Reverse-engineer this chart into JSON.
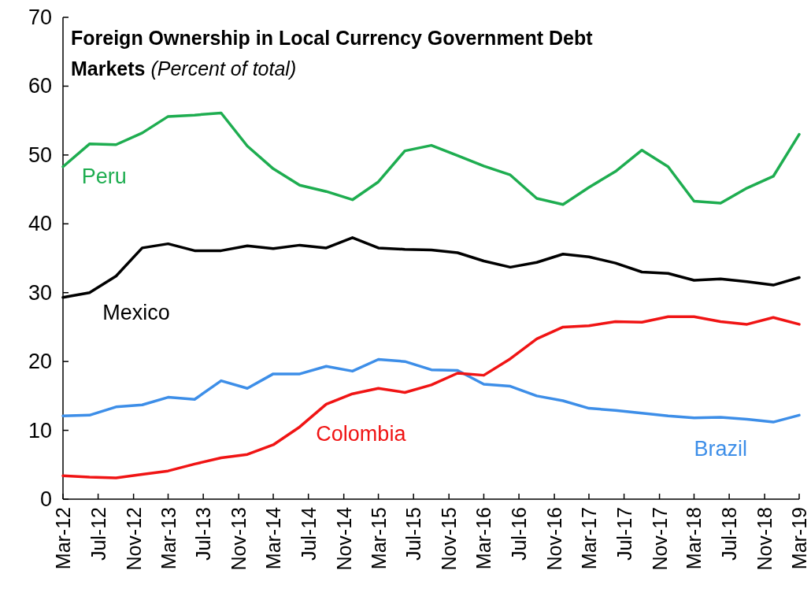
{
  "chart_data": {
    "type": "line",
    "title": "Foreign Ownership in Local Currency Government Debt Markets",
    "subtitle": "(Percent of total)",
    "x": [
      "2012-03",
      "2012-06",
      "2012-09",
      "2012-12",
      "2013-03",
      "2013-06",
      "2013-09",
      "2013-12",
      "2014-03",
      "2014-06",
      "2014-09",
      "2014-12",
      "2015-03",
      "2015-06",
      "2015-09",
      "2015-12",
      "2016-03",
      "2016-06",
      "2016-09",
      "2016-12",
      "2017-03",
      "2017-06",
      "2017-09",
      "2017-12",
      "2018-03",
      "2018-06",
      "2018-09",
      "2018-12",
      "2019-03"
    ],
    "series": [
      {
        "name": "Peru",
        "color": "#1ead50",
        "values": [
          48.3,
          51.6,
          51.5,
          53.2,
          55.6,
          55.8,
          56.1,
          51.3,
          48.0,
          45.6,
          44.7,
          43.5,
          46.1,
          50.6,
          51.4,
          49.9,
          48.4,
          47.1,
          43.7,
          42.8,
          45.3,
          47.6,
          50.7,
          48.3,
          43.3,
          43.0,
          45.2,
          46.9,
          53.0
        ]
      },
      {
        "name": "Mexico",
        "color": "#000000",
        "values": [
          29.3,
          30.0,
          32.4,
          36.5,
          37.1,
          36.1,
          36.1,
          36.8,
          36.4,
          36.9,
          36.5,
          38.0,
          36.5,
          36.3,
          36.2,
          35.8,
          34.6,
          33.7,
          34.4,
          35.6,
          35.2,
          34.3,
          33.0,
          32.8,
          31.8,
          32.0,
          31.6,
          31.1,
          32.2
        ]
      },
      {
        "name": "Brazil",
        "color": "#3d8ee8",
        "values": [
          12.1,
          12.2,
          13.4,
          13.7,
          14.8,
          14.5,
          17.2,
          16.1,
          18.2,
          18.2,
          19.3,
          18.6,
          20.3,
          20.0,
          18.8,
          18.7,
          16.7,
          16.4,
          15.0,
          14.3,
          13.2,
          12.9,
          12.5,
          12.1,
          11.8,
          11.9,
          11.6,
          11.2,
          12.2
        ]
      },
      {
        "name": "Colombia",
        "color": "#f01414",
        "values": [
          3.4,
          3.2,
          3.1,
          3.6,
          4.1,
          5.1,
          6.0,
          6.5,
          7.9,
          10.5,
          13.8,
          15.3,
          16.1,
          15.5,
          16.6,
          18.3,
          18.0,
          20.4,
          23.3,
          25.0,
          25.2,
          25.8,
          25.7,
          26.5,
          26.5,
          25.8,
          25.4,
          26.4,
          25.4
        ]
      }
    ],
    "xlim": [
      "2012-03",
      "2019-03"
    ],
    "xticks": [
      {
        "value": "2012-03",
        "label": "Mar-12"
      },
      {
        "value": "2012-07",
        "label": "Jul-12"
      },
      {
        "value": "2012-11",
        "label": "Nov-12"
      },
      {
        "value": "2013-03",
        "label": "Mar-13"
      },
      {
        "value": "2013-07",
        "label": "Jul-13"
      },
      {
        "value": "2013-11",
        "label": "Nov-13"
      },
      {
        "value": "2014-03",
        "label": "Mar-14"
      },
      {
        "value": "2014-07",
        "label": "Jul-14"
      },
      {
        "value": "2014-11",
        "label": "Nov-14"
      },
      {
        "value": "2015-03",
        "label": "Mar-15"
      },
      {
        "value": "2015-07",
        "label": "Jul-15"
      },
      {
        "value": "2015-11",
        "label": "Nov-15"
      },
      {
        "value": "2016-03",
        "label": "Mar-16"
      },
      {
        "value": "2016-07",
        "label": "Jul-16"
      },
      {
        "value": "2016-11",
        "label": "Nov-16"
      },
      {
        "value": "2017-03",
        "label": "Mar-17"
      },
      {
        "value": "2017-07",
        "label": "Jul-17"
      },
      {
        "value": "2017-11",
        "label": "Nov-17"
      },
      {
        "value": "2018-03",
        "label": "Mar-18"
      },
      {
        "value": "2018-07",
        "label": "Jul-18"
      },
      {
        "value": "2018-11",
        "label": "Nov-18"
      },
      {
        "value": "2019-03",
        "label": "Mar-19"
      }
    ],
    "ylim": [
      0,
      70
    ],
    "yticks": [
      0,
      10,
      20,
      30,
      40,
      50,
      60,
      70
    ],
    "grid": false,
    "marker": "none",
    "line_style": "solid"
  }
}
